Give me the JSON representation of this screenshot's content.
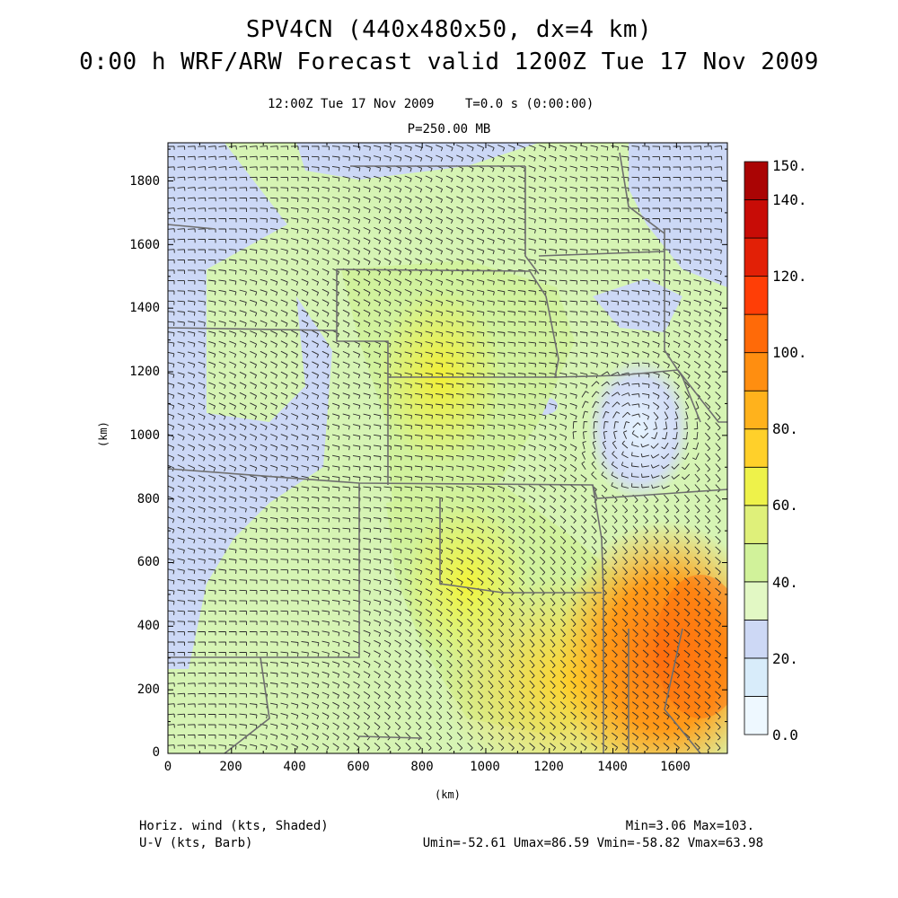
{
  "header": {
    "title_line1": "SPV4CN (440x480x50, dx=4 km)",
    "title_line2": "0:00 h WRF/ARW Forecast valid 1200Z Tue 17 Nov 2009",
    "valid_time": "12:00Z Tue 17 Nov 2009",
    "sim_time": "T=0.0 s (0:00:00)",
    "level": "P=250.00 MB"
  },
  "axes": {
    "xlabel": "(km)",
    "ylabel": "(km)",
    "xticks": [
      "0",
      "200",
      "400",
      "600",
      "800",
      "1000",
      "1200",
      "1400",
      "1600"
    ],
    "yticks": [
      "0",
      "200",
      "400",
      "600",
      "800",
      "1000",
      "1200",
      "1400",
      "1600",
      "1800"
    ],
    "xlim": [
      0,
      1760
    ],
    "ylim": [
      0,
      1920
    ]
  },
  "colorbar": {
    "labels": [
      "0.0",
      "20.",
      "40.",
      "60.",
      "80.",
      "100.",
      "120.",
      "140.",
      "150."
    ],
    "colors": [
      "#eef8ff",
      "#d8ecfa",
      "#cdd8f5",
      "#e2f8c4",
      "#d1f29a",
      "#dff07a",
      "#eef24a",
      "#ffd02a",
      "#ffb21c",
      "#ff8e10",
      "#ff6a08",
      "#ff3e06",
      "#e22006",
      "#c80c06",
      "#aa0404"
    ]
  },
  "footer": {
    "left_line1": "Horiz. wind (kts, Shaded)",
    "left_line2": "U-V (kts, Barb)",
    "right_line1": "Min=3.06 Max=103.",
    "right_line2": "Umin=-52.61 Umax=86.59 Vmin=-58.82 Vmax=63.98"
  }
}
